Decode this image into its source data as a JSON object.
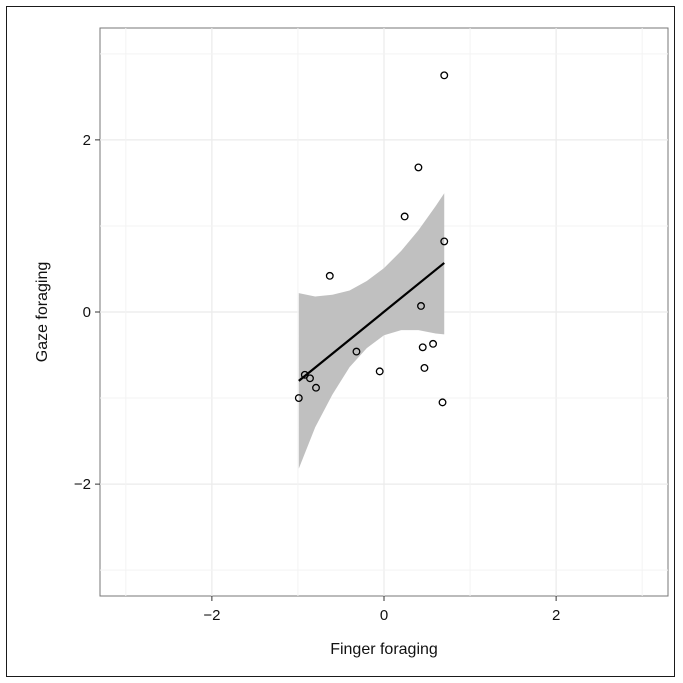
{
  "chart_data": {
    "type": "scatter",
    "title": "",
    "xlabel": "Finger foraging",
    "ylabel": "Gaze foraging",
    "xlim": [
      -3.3,
      3.3
    ],
    "ylim": [
      -3.3,
      3.3
    ],
    "xticks": [
      -2,
      0,
      2
    ],
    "yticks": [
      -2,
      0,
      2
    ],
    "xtick_labels": [
      "−2",
      "0",
      "2"
    ],
    "ytick_labels": [
      "−2",
      "0",
      "2"
    ],
    "grid": true,
    "background": "#ffffff",
    "grid_color": "#ebebeb",
    "band_color": "#bdbdbd",
    "line_color": "#000000",
    "point_stroke": "#000000",
    "points": [
      {
        "x": 0.7,
        "y": 2.75
      },
      {
        "x": 0.4,
        "y": 1.68
      },
      {
        "x": 0.24,
        "y": 1.11
      },
      {
        "x": 0.7,
        "y": 0.82
      },
      {
        "x": -0.63,
        "y": 0.42
      },
      {
        "x": 0.43,
        "y": 0.07
      },
      {
        "x": 0.57,
        "y": -0.37
      },
      {
        "x": 0.45,
        "y": -0.41
      },
      {
        "x": -0.32,
        "y": -0.46
      },
      {
        "x": 0.47,
        "y": -0.65
      },
      {
        "x": -0.05,
        "y": -0.69
      },
      {
        "x": -0.92,
        "y": -0.73
      },
      {
        "x": -0.86,
        "y": -0.77
      },
      {
        "x": -0.79,
        "y": -0.88
      },
      {
        "x": -0.99,
        "y": -1.0
      },
      {
        "x": 0.68,
        "y": -1.05
      }
    ],
    "fit_line": {
      "x": [
        -0.99,
        0.7
      ],
      "y": [
        -0.8,
        0.57
      ]
    },
    "confidence_band": {
      "x": [
        -0.99,
        -0.8,
        -0.6,
        -0.4,
        -0.2,
        0.0,
        0.2,
        0.4,
        0.6,
        0.7
      ],
      "upper": [
        0.22,
        0.18,
        0.2,
        0.25,
        0.36,
        0.51,
        0.71,
        0.95,
        1.23,
        1.38
      ],
      "lower": [
        -1.82,
        -1.34,
        -0.96,
        -0.64,
        -0.42,
        -0.27,
        -0.21,
        -0.21,
        -0.25,
        -0.26
      ]
    }
  }
}
